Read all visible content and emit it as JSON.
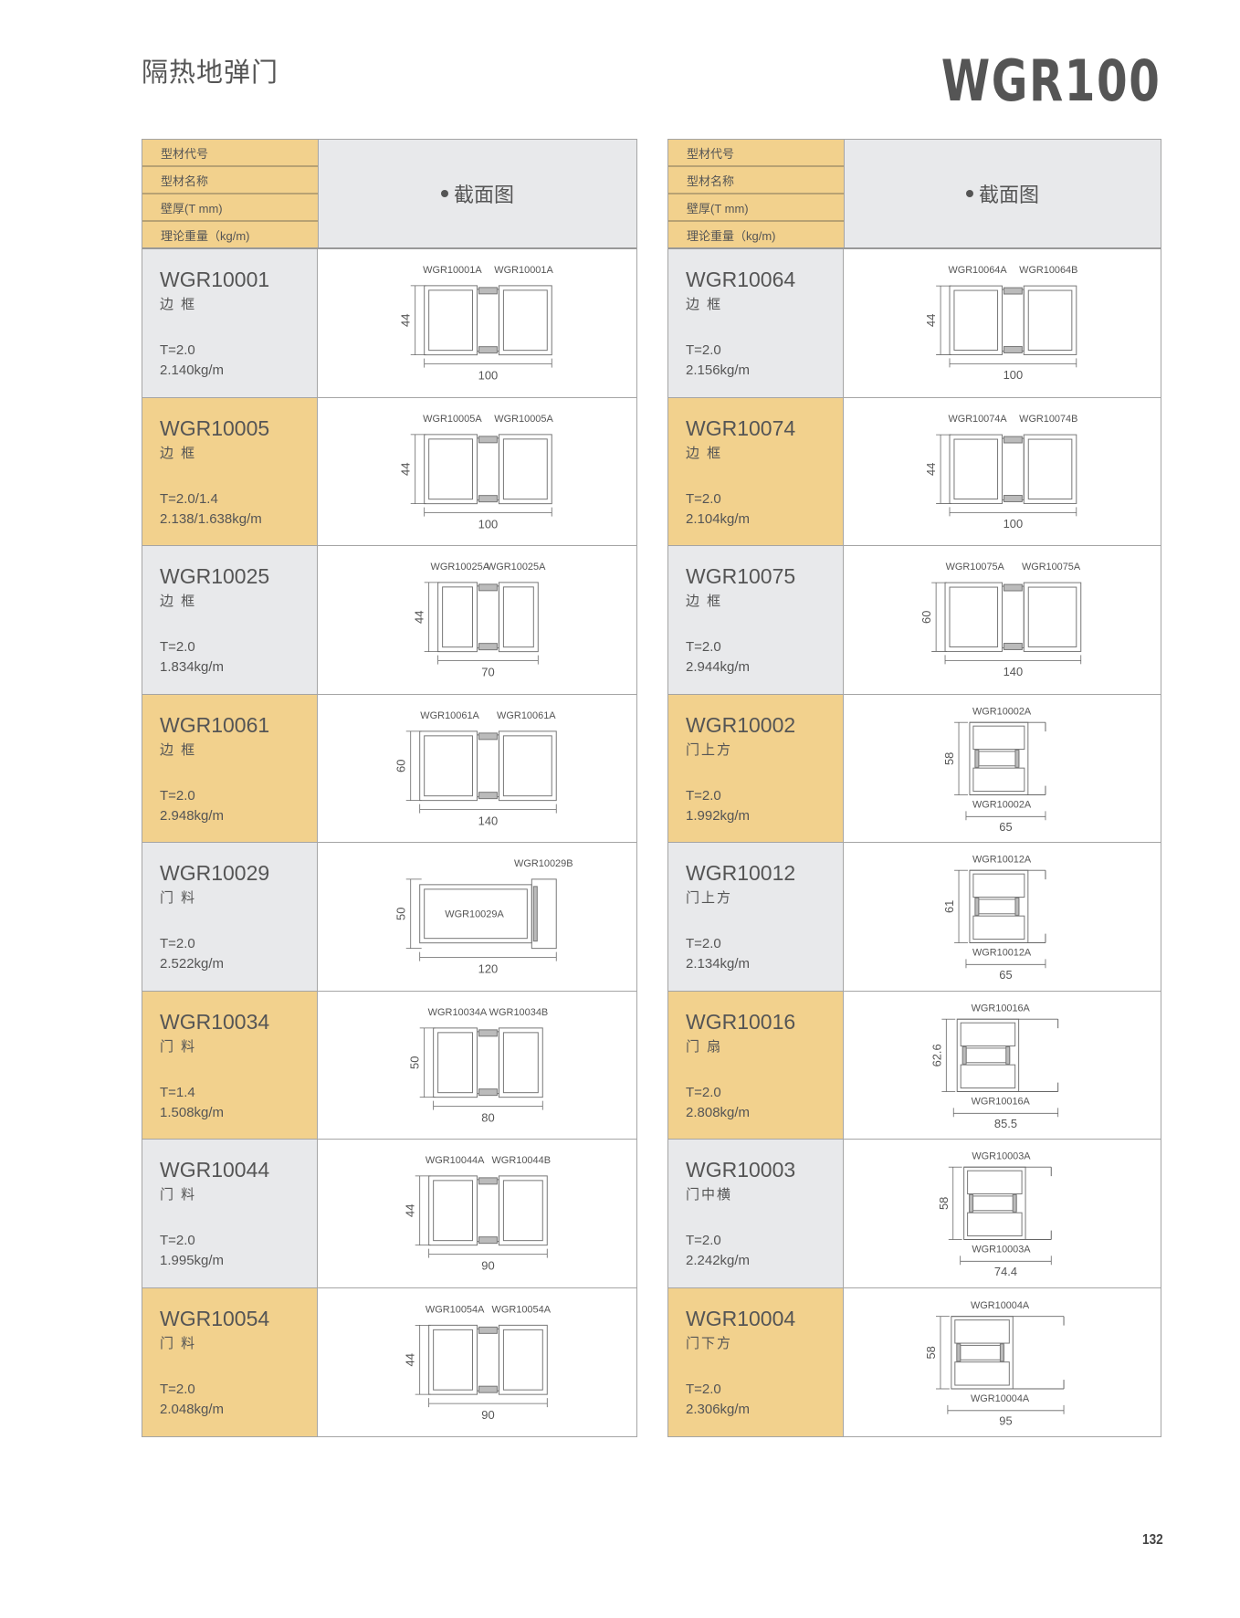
{
  "header": {
    "category": "隔热地弹门",
    "series": "WGR100"
  },
  "page_number": "132",
  "colors": {
    "yellow": "#f2d18d",
    "grey": "#e8e9eb",
    "text": "#555555",
    "border": "#a5a5a5"
  },
  "table_header": {
    "code_label": "型材代号",
    "name_label": "型材名称",
    "thickness_label": "壁厚(T mm)",
    "weight_label": "理论重量（kg/m)",
    "section_label": "截面图"
  },
  "left": [
    {
      "code": "WGR10001",
      "name": "边 框",
      "thickness": "T=2.0",
      "weight": "2.140kg/m",
      "shade": "grey",
      "diagram": {
        "layout": "horizontal",
        "labels": [
          "WGR10001A",
          "WGR10001A"
        ],
        "width_dim": "100",
        "height_dim": "44"
      }
    },
    {
      "code": "WGR10005",
      "name": "边 框",
      "thickness": "T=2.0/1.4",
      "weight": "2.138/1.638kg/m",
      "shade": "yellow",
      "diagram": {
        "layout": "horizontal",
        "labels": [
          "WGR10005A",
          "WGR10005A"
        ],
        "width_dim": "100",
        "height_dim": "44"
      }
    },
    {
      "code": "WGR10025",
      "name": "边 框",
      "thickness": "T=2.0",
      "weight": "1.834kg/m",
      "shade": "grey",
      "diagram": {
        "layout": "horizontal",
        "labels": [
          "WGR10025A",
          "WGR10025A"
        ],
        "width_dim": "70",
        "height_dim": "44"
      }
    },
    {
      "code": "WGR10061",
      "name": "边 框",
      "thickness": "T=2.0",
      "weight": "2.948kg/m",
      "shade": "yellow",
      "diagram": {
        "layout": "horizontal",
        "labels": [
          "WGR10061A",
          "WGR10061A"
        ],
        "width_dim": "140",
        "height_dim": "60"
      }
    },
    {
      "code": "WGR10029",
      "name": "门 料",
      "thickness": "T=2.0",
      "weight": "2.522kg/m",
      "shade": "grey",
      "diagram": {
        "layout": "single",
        "labels": [
          "WGR10029B",
          "WGR10029A"
        ],
        "width_dim": "120",
        "height_dim": "50"
      }
    },
    {
      "code": "WGR10034",
      "name": "门 料",
      "thickness": "T=1.4",
      "weight": "1.508kg/m",
      "shade": "yellow",
      "diagram": {
        "layout": "horizontal",
        "labels": [
          "WGR10034A",
          "WGR10034B"
        ],
        "width_dim": "80",
        "height_dim": "50"
      }
    },
    {
      "code": "WGR10044",
      "name": "门 料",
      "thickness": "T=2.0",
      "weight": "1.995kg/m",
      "shade": "grey",
      "diagram": {
        "layout": "horizontal",
        "labels": [
          "WGR10044A",
          "WGR10044B"
        ],
        "width_dim": "90",
        "height_dim": "44"
      }
    },
    {
      "code": "WGR10054",
      "name": "门 料",
      "thickness": "T=2.0",
      "weight": "2.048kg/m",
      "shade": "yellow",
      "diagram": {
        "layout": "horizontal",
        "labels": [
          "WGR10054A",
          "WGR10054A"
        ],
        "width_dim": "90",
        "height_dim": "44"
      }
    }
  ],
  "right": [
    {
      "code": "WGR10064",
      "name": "边 框",
      "thickness": "T=2.0",
      "weight": "2.156kg/m",
      "shade": "grey",
      "diagram": {
        "layout": "horizontal",
        "labels": [
          "WGR10064A",
          "WGR10064B"
        ],
        "width_dim": "100",
        "height_dim": "44"
      }
    },
    {
      "code": "WGR10074",
      "name": "边 框",
      "thickness": "T=2.0",
      "weight": "2.104kg/m",
      "shade": "yellow",
      "diagram": {
        "layout": "horizontal",
        "labels": [
          "WGR10074A",
          "WGR10074B"
        ],
        "width_dim": "100",
        "height_dim": "44"
      }
    },
    {
      "code": "WGR10075",
      "name": "边 框",
      "thickness": "T=2.0",
      "weight": "2.944kg/m",
      "shade": "grey",
      "diagram": {
        "layout": "horizontal",
        "labels": [
          "WGR10075A",
          "WGR10075A"
        ],
        "width_dim": "140",
        "height_dim": "60"
      }
    },
    {
      "code": "WGR10002",
      "name": "门上方",
      "thickness": "T=2.0",
      "weight": "1.992kg/m",
      "shade": "yellow",
      "diagram": {
        "layout": "vertical",
        "labels": [
          "WGR10002A",
          "WGR10002A"
        ],
        "width_dim": "65",
        "height_dim": "58"
      }
    },
    {
      "code": "WGR10012",
      "name": "门上方",
      "thickness": "T=2.0",
      "weight": "2.134kg/m",
      "shade": "grey",
      "diagram": {
        "layout": "vertical",
        "labels": [
          "WGR10012A",
          "WGR10012A"
        ],
        "width_dim": "65",
        "height_dim": "61"
      }
    },
    {
      "code": "WGR10016",
      "name": "门 扇",
      "thickness": "T=2.0",
      "weight": "2.808kg/m",
      "shade": "yellow",
      "diagram": {
        "layout": "vertical",
        "labels": [
          "WGR10016A",
          "WGR10016A"
        ],
        "width_dim": "85.5",
        "height_dim": "62.6"
      }
    },
    {
      "code": "WGR10003",
      "name": "门中横",
      "thickness": "T=2.0",
      "weight": "2.242kg/m",
      "shade": "grey",
      "diagram": {
        "layout": "vertical",
        "labels": [
          "WGR10003A",
          "WGR10003A"
        ],
        "width_dim": "74.4",
        "height_dim": "58"
      }
    },
    {
      "code": "WGR10004",
      "name": "门下方",
      "thickness": "T=2.0",
      "weight": "2.306kg/m",
      "shade": "yellow",
      "diagram": {
        "layout": "vertical",
        "labels": [
          "WGR10004A",
          "WGR10004A"
        ],
        "width_dim": "95",
        "height_dim": "58"
      }
    }
  ]
}
